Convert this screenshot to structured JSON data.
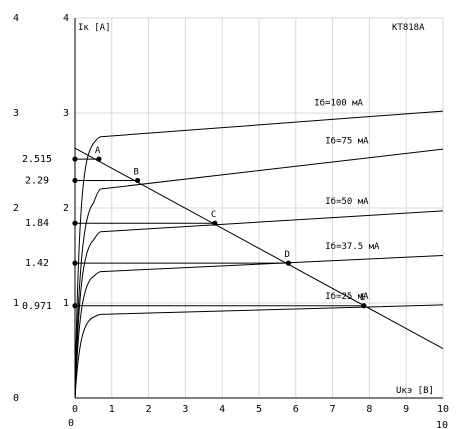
{
  "chart_data": {
    "type": "line",
    "title": "КТ818А",
    "xlabel": "Uкэ [В]",
    "ylabel": "Iк [А]",
    "xlim": [
      0,
      10
    ],
    "ylim": [
      0,
      4
    ],
    "x_ticks": [
      "0",
      "1",
      "2",
      "3",
      "4",
      "5",
      "6",
      "7",
      "8",
      "9",
      "10"
    ],
    "y_ticks": [
      "0",
      "1",
      "2",
      "3",
      "4"
    ],
    "corner_labels": {
      "bottom_left": "0",
      "bottom_right": "10"
    },
    "grid": true,
    "series": [
      {
        "name": "Iб=100 мА",
        "shape": {
          "rise": [
            [
              0.25,
              2.45
            ],
            [
              0.5,
              2.68
            ],
            [
              0.7,
              2.75
            ]
          ],
          "x": [
            0.7,
            10
          ],
          "y": [
            2.75,
            3.02
          ]
        }
      },
      {
        "name": "Iб=75 мА",
        "shape": {
          "rise": [
            [
              0.25,
              1.6
            ],
            [
              0.5,
              2.05
            ],
            [
              0.7,
              2.2
            ]
          ],
          "x": [
            0.7,
            10
          ],
          "y": [
            2.2,
            2.62
          ]
        }
      },
      {
        "name": "Iб=50 мА",
        "shape": {
          "rise": [
            [
              0.25,
              1.35
            ],
            [
              0.5,
              1.66
            ],
            [
              0.7,
              1.75
            ]
          ],
          "x": [
            0.7,
            10
          ],
          "y": [
            1.75,
            1.97
          ]
        }
      },
      {
        "name": "Iб=37.5 мА",
        "shape": {
          "rise": [
            [
              0.25,
              1.05
            ],
            [
              0.5,
              1.28
            ],
            [
              0.7,
              1.33
            ]
          ],
          "x": [
            0.7,
            10
          ],
          "y": [
            1.33,
            1.5
          ]
        }
      },
      {
        "name": "Iб=25 мА",
        "shape": {
          "rise": [
            [
              0.25,
              0.7
            ],
            [
              0.5,
              0.85
            ],
            [
              0.7,
              0.88
            ]
          ],
          "x": [
            0.7,
            10
          ],
          "y": [
            0.88,
            0.98
          ]
        }
      }
    ],
    "load_line": {
      "x": [
        0,
        10
      ],
      "y": [
        2.63,
        0.52
      ]
    },
    "operating_points": [
      {
        "label": "A",
        "x": 0.65,
        "y": 2.515,
        "value_label": "2.515"
      },
      {
        "label": "B",
        "x": 1.7,
        "y": 2.29,
        "value_label": "2.29"
      },
      {
        "label": "C",
        "x": 3.8,
        "y": 1.84,
        "value_label": "1.84"
      },
      {
        "label": "D",
        "x": 5.8,
        "y": 1.42,
        "value_label": "1.42"
      },
      {
        "label": "E",
        "x": 7.85,
        "y": 0.971,
        "value_label": "0.971"
      }
    ]
  }
}
